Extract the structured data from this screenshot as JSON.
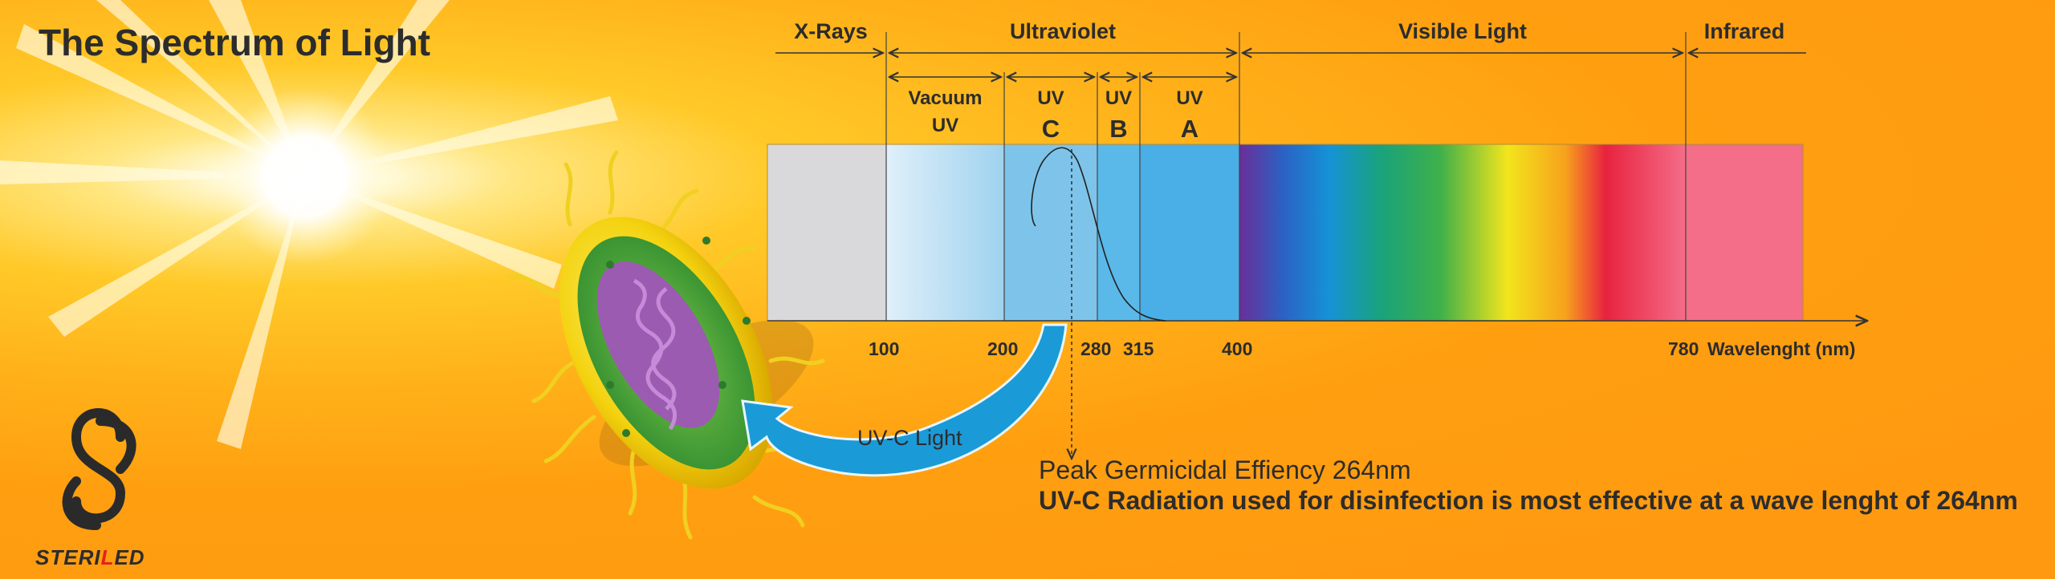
{
  "title": "The Spectrum of Light",
  "bands": {
    "xrays": "X-Rays",
    "ultraviolet": "Ultraviolet",
    "visible": "Visible Light",
    "infrared": "Infrared"
  },
  "uv_subbands": {
    "vacuum_line1": "Vacuum",
    "vacuum_line2": "UV",
    "uvc_top": "UV",
    "uvc_letter": "C",
    "uvb_top": "UV",
    "uvb_letter": "B",
    "uva_top": "UV",
    "uva_letter": "A"
  },
  "axis": {
    "ticks": [
      "100",
      "200",
      "280",
      "315",
      "400",
      "780"
    ],
    "unit_label": "Wavelenght (nm)"
  },
  "uvc_arrow_label": "UV-C Light",
  "peak_label": "Peak Germicidal Effiency 264nm",
  "description": "UV-C Radiation used for disinfection is most effective at a wave lenght of 264nm",
  "brand": {
    "prefix": "STERI",
    "accent": "L",
    "suffix": "ED"
  },
  "chart_data": {
    "type": "spectrum diagram",
    "segments": [
      {
        "name": "X-Rays",
        "to_nm": 100,
        "color": "#d9d9dc"
      },
      {
        "name": "Vacuum UV",
        "from_nm": 100,
        "to_nm": 200,
        "color": "#cde8f5"
      },
      {
        "name": "UV C",
        "from_nm": 200,
        "to_nm": 280,
        "color": "#7ec4ea"
      },
      {
        "name": "UV B",
        "from_nm": 280,
        "to_nm": 315,
        "color": "#5ab9e8"
      },
      {
        "name": "UV A",
        "from_nm": 315,
        "to_nm": 400,
        "color": "#4aafe6"
      },
      {
        "name": "Visible Light",
        "from_nm": 400,
        "to_nm": 780
      },
      {
        "name": "Infrared",
        "from_nm": 780,
        "color": "#f46d89"
      }
    ],
    "peak_nm": 264
  },
  "colors": {
    "accent_blue": "#1b9ad8",
    "text": "#2c2c2c",
    "brand_red": "#e2231a"
  }
}
